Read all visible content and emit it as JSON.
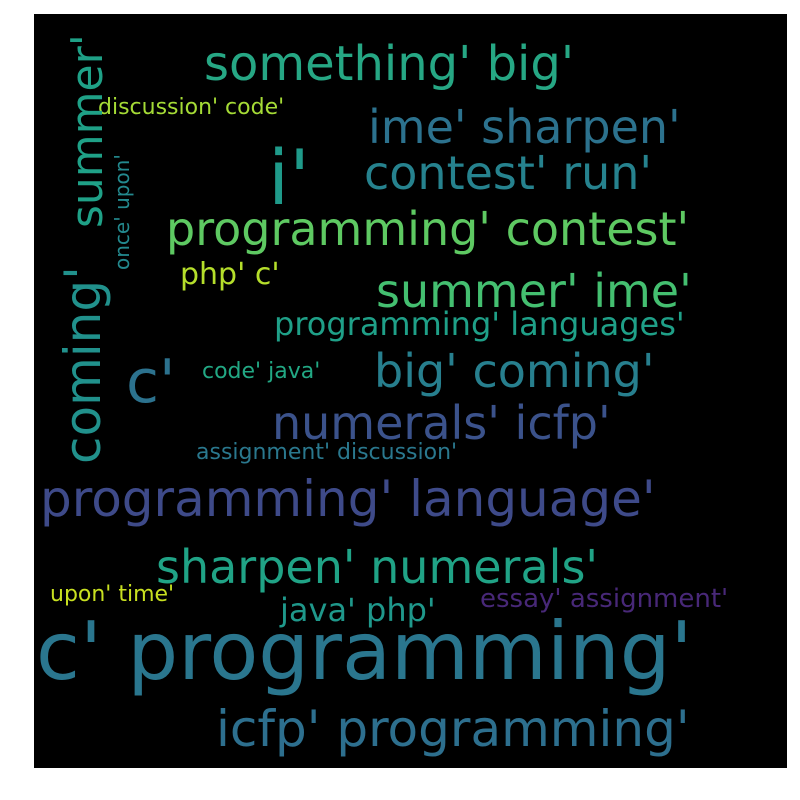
{
  "words": [
    {
      "text": "something' big'",
      "color": "#26a784"
    },
    {
      "text": "discussion' code'",
      "color": "#a5db36"
    },
    {
      "text": "ime' sharpen'",
      "color": "#2c728e"
    },
    {
      "text": "i'",
      "color": "#1f9a8a"
    },
    {
      "text": "contest' run'",
      "color": "#26828e"
    },
    {
      "text": "programming' contest'",
      "color": "#5ec962"
    },
    {
      "text": "php' c'",
      "color": "#b5de2b"
    },
    {
      "text": "summer' ime'",
      "color": "#44bf70"
    },
    {
      "text": "programming' languages'",
      "color": "#1fa088"
    },
    {
      "text": "c'",
      "color": "#2c728e"
    },
    {
      "text": "code' java'",
      "color": "#22a884"
    },
    {
      "text": "big' coming'",
      "color": "#277f8e"
    },
    {
      "text": "numerals' icfp'",
      "color": "#3b528b"
    },
    {
      "text": "assignment' discussion'",
      "color": "#2a788e"
    },
    {
      "text": "programming' language'",
      "color": "#3e4a89"
    },
    {
      "text": "sharpen' numerals'",
      "color": "#20a386"
    },
    {
      "text": "upon' time'",
      "color": "#c8e020"
    },
    {
      "text": "java' php'",
      "color": "#1f988b"
    },
    {
      "text": "essay' assignment'",
      "color": "#482878"
    },
    {
      "text": "c' programming'",
      "color": "#2a768e"
    },
    {
      "text": "icfp' programming'",
      "color": "#2d6f8e"
    },
    {
      "text": "summer'",
      "color": "#1fa187"
    },
    {
      "text": "coming'",
      "color": "#21918c"
    },
    {
      "text": "once' upon'",
      "color": "#23898e"
    }
  ]
}
